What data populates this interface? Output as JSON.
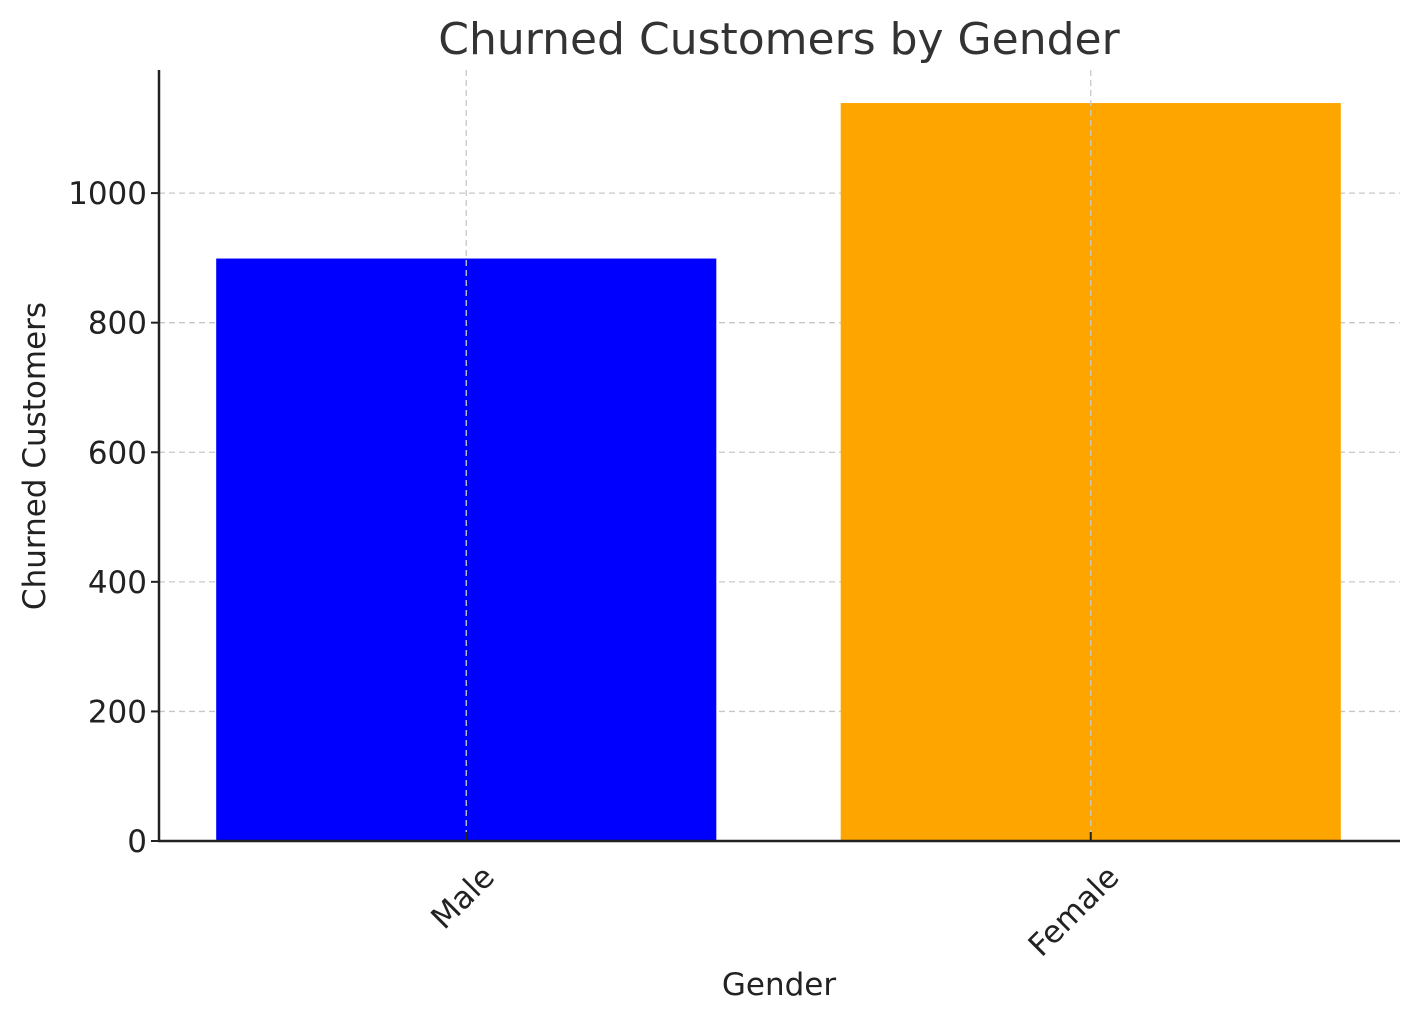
{
  "chart_data": {
    "type": "bar",
    "title": "Churned Customers by Gender",
    "xlabel": "Gender",
    "ylabel": "Churned Customers",
    "categories": [
      "Male",
      "Female"
    ],
    "values": [
      899,
      1139
    ],
    "colors": [
      "#0000ff",
      "#ffa500"
    ],
    "ylim": [
      0,
      1190
    ],
    "yticks": [
      0,
      200,
      400,
      600,
      800,
      1000
    ],
    "grid": true,
    "legend": "none"
  }
}
